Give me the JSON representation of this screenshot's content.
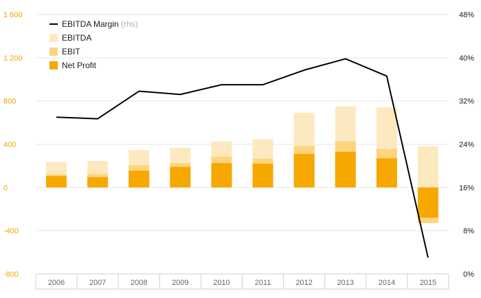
{
  "chart_data": {
    "type": "bar",
    "categories": [
      "2006",
      "2007",
      "2008",
      "2009",
      "2010",
      "2011",
      "2012",
      "2013",
      "2014",
      "2015"
    ],
    "series": [
      {
        "name": "EBITDA",
        "kind": "bar",
        "color": "#fde9bf",
        "values": [
          235,
          245,
          345,
          365,
          425,
          445,
          690,
          750,
          740,
          380
        ]
      },
      {
        "name": "EBIT",
        "kind": "bar",
        "color": "#fdd57e",
        "values": [
          120,
          125,
          205,
          225,
          285,
          265,
          385,
          425,
          355,
          -330
        ]
      },
      {
        "name": "Net Profit",
        "kind": "bar",
        "color": "#f6a800",
        "values": [
          105,
          95,
          155,
          190,
          225,
          220,
          310,
          330,
          270,
          -280
        ]
      },
      {
        "name": "EBITDA Margin",
        "kind": "line",
        "axis": "right",
        "color": "#000000",
        "values": [
          29.0,
          28.7,
          33.8,
          33.2,
          35.0,
          35.0,
          37.7,
          39.8,
          36.6,
          3.0
        ]
      }
    ],
    "legend": {
      "placement": "top-left",
      "items": [
        {
          "label": "EBITDA Margin",
          "suffix": "(rhs)",
          "marker": "line",
          "color": "#000000"
        },
        {
          "label": "EBITDA",
          "suffix": "",
          "marker": "square",
          "color": "#fde9bf"
        },
        {
          "label": "EBIT",
          "suffix": "",
          "marker": "square",
          "color": "#fdd57e"
        },
        {
          "label": "Net Profit",
          "suffix": "",
          "marker": "square",
          "color": "#f6a800"
        }
      ]
    },
    "y_left": {
      "ylim": [
        -800,
        1600
      ],
      "ticks": [
        -800,
        -400,
        0,
        400,
        800,
        1200,
        1600
      ],
      "tick_labels": [
        "-800",
        "-400",
        "0",
        "400",
        "800",
        "1 200",
        "1 600"
      ],
      "label_color": "#f0a500"
    },
    "y_right": {
      "ylim": [
        0,
        48
      ],
      "ticks": [
        0,
        8,
        16,
        24,
        32,
        40,
        48
      ],
      "tick_labels": [
        "0%",
        "8%",
        "16%",
        "24%",
        "32%",
        "40%",
        "48%"
      ]
    },
    "grid": true
  }
}
